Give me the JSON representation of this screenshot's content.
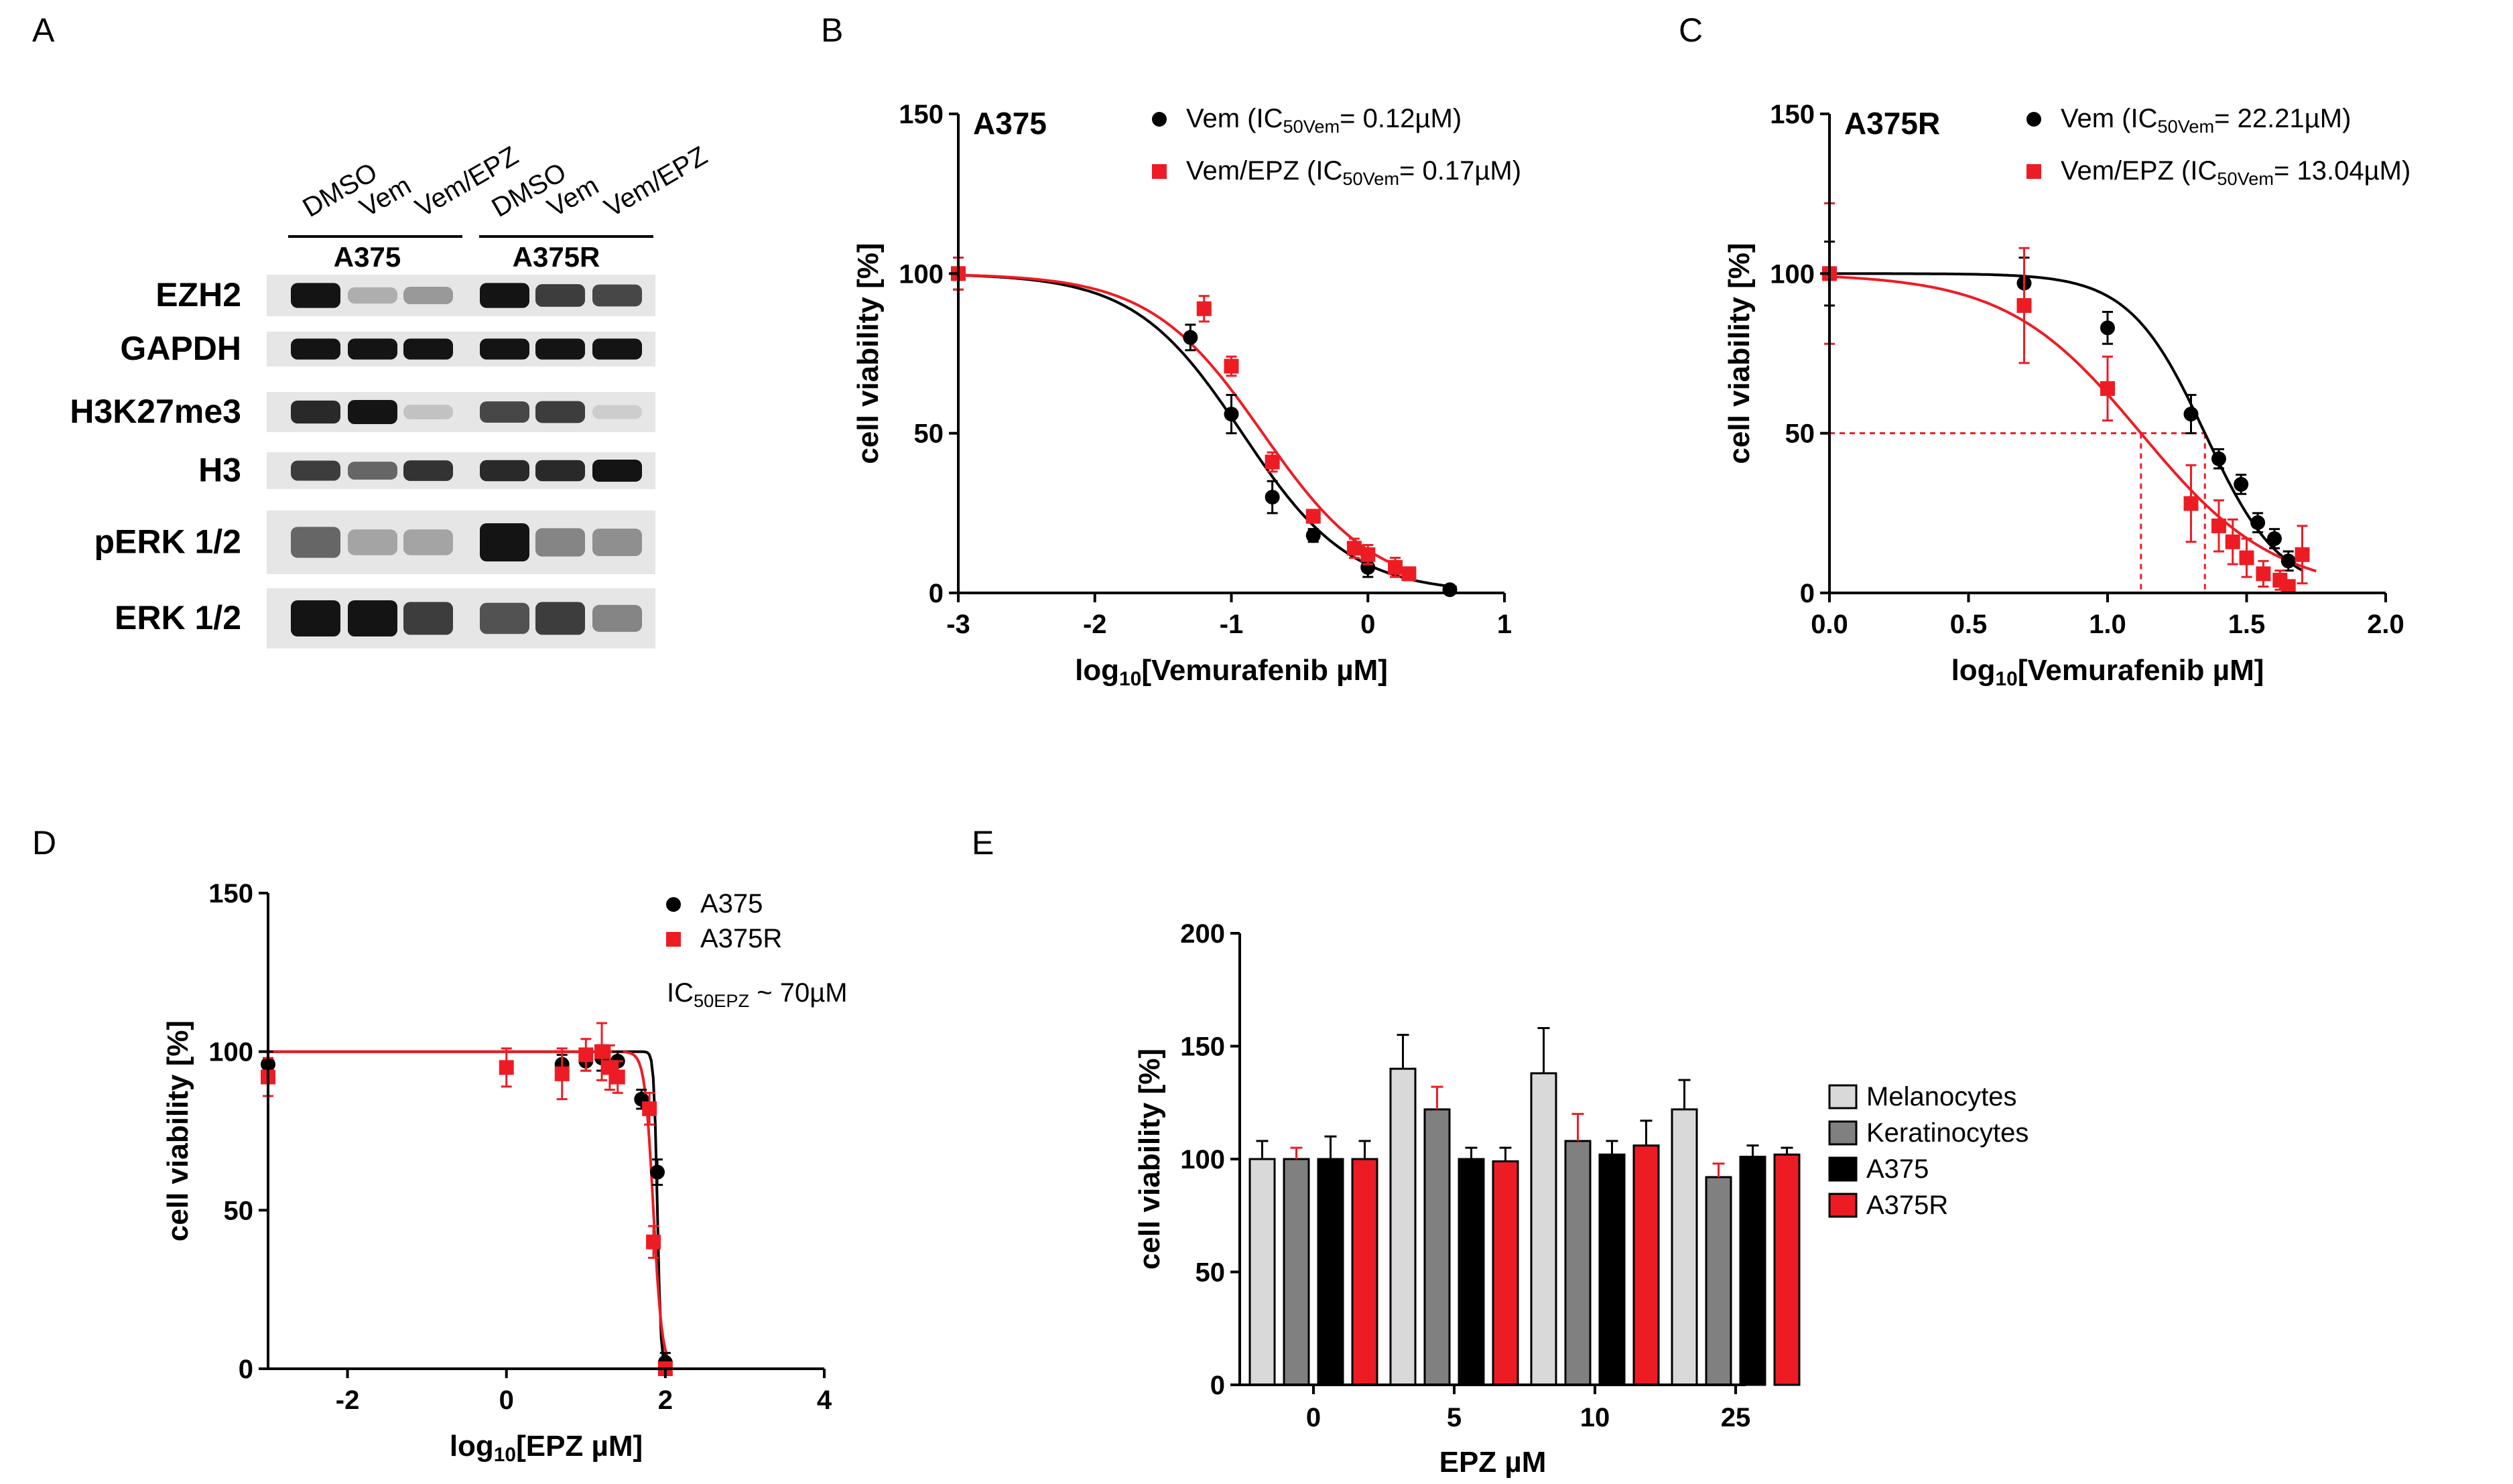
{
  "panel_letters": [
    "A",
    "B",
    "C",
    "D",
    "E"
  ],
  "blot": {
    "lanes": [
      "DMSO",
      "Vem",
      "Vem/EPZ",
      "DMSO",
      "Vem",
      "Vem/EPZ"
    ],
    "cell_lines": [
      "A375",
      "A375R"
    ],
    "rows": [
      "EZH2",
      "GAPDH",
      "H3K27me3",
      "H3",
      "pERK 1/2",
      "ERK 1/2"
    ],
    "band_intensity": [
      [
        1.0,
        0.25,
        0.35,
        1.0,
        0.8,
        0.75
      ],
      [
        1.0,
        1.0,
        1.0,
        1.0,
        1.0,
        1.0
      ],
      [
        0.9,
        1.0,
        0.15,
        0.75,
        0.8,
        0.1
      ],
      [
        0.8,
        0.6,
        0.85,
        0.9,
        0.9,
        1.0
      ],
      [
        0.6,
        0.3,
        0.3,
        1.0,
        0.45,
        0.4
      ],
      [
        1.0,
        1.0,
        0.8,
        0.7,
        0.8,
        0.45
      ]
    ]
  },
  "chart_data": [
    {
      "id": "B",
      "type": "scatter",
      "title": "A375",
      "xlabel_prefix": "log",
      "xlabel_sub": "10",
      "xlabel_suffix": "[Vemurafenib µM]",
      "ylabel": "cell viability [%]",
      "xlim": [
        -3,
        1
      ],
      "ylim": [
        0,
        150
      ],
      "xticks": [
        -3,
        -2,
        -1,
        0,
        1
      ],
      "yticks": [
        0,
        50,
        100,
        150
      ],
      "xtick_labels": [
        "-3",
        "-2",
        "-1",
        "0",
        "1"
      ],
      "ytick_labels": [
        "0",
        "50",
        "100",
        "150"
      ],
      "series": [
        {
          "name": "Vem",
          "legend_pre": "Vem (IC",
          "legend_sub": "50Vem",
          "legend_post": "= 0.12µM)",
          "color": "#000000",
          "marker": "circle",
          "x": [
            -3,
            -1.3,
            -1.0,
            -0.7,
            -0.4,
            0.0,
            0.6
          ],
          "y": [
            100,
            80,
            56,
            30,
            18,
            8,
            1
          ],
          "err": [
            5,
            4,
            6,
            5,
            2,
            3,
            1
          ],
          "fit": {
            "top": 100,
            "bottom": 0,
            "logic50": -0.92,
            "hill": 1.1
          }
        },
        {
          "name": "Vem/EPZ",
          "legend_pre": "Vem/EPZ (IC",
          "legend_sub": "50Vem",
          "legend_post": "= 0.17µM)",
          "color": "#ed1c24",
          "marker": "square",
          "x": [
            -3,
            -1.2,
            -1.0,
            -0.7,
            -0.4,
            -0.1,
            0.0,
            0.2,
            0.3
          ],
          "y": [
            100,
            89,
            71,
            41,
            24,
            14,
            12,
            8,
            6
          ],
          "err": [
            5,
            4,
            3,
            3,
            2,
            3,
            3,
            3,
            2
          ],
          "fit": {
            "top": 100,
            "bottom": 0,
            "logic50": -0.77,
            "hill": 1.05
          }
        }
      ]
    },
    {
      "id": "C",
      "type": "scatter",
      "title": "A375R",
      "xlabel_prefix": "log",
      "xlabel_sub": "10",
      "xlabel_suffix": "[Vemurafenib µM]",
      "ylabel": "cell viability [%]",
      "xlim": [
        0,
        2
      ],
      "ylim": [
        0,
        150
      ],
      "xticks": [
        0,
        0.5,
        1.0,
        1.5,
        2.0
      ],
      "yticks": [
        0,
        50,
        100,
        150
      ],
      "xtick_labels": [
        "0.0",
        "0.5",
        "1.0",
        "1.5",
        "2.0"
      ],
      "ytick_labels": [
        "0",
        "50",
        "100",
        "150"
      ],
      "ic50_guides": [
        1.12,
        1.35
      ],
      "series": [
        {
          "name": "Vem",
          "legend_pre": "Vem (IC",
          "legend_sub": "50Vem",
          "legend_post": "= 22.21µM)",
          "color": "#000000",
          "marker": "circle",
          "x": [
            0,
            0.7,
            1.0,
            1.3,
            1.4,
            1.48,
            1.54,
            1.6,
            1.65
          ],
          "y": [
            100,
            97,
            83,
            56,
            42,
            34,
            22,
            17,
            10
          ],
          "err": [
            10,
            8,
            5,
            6,
            3,
            3,
            3,
            3,
            3
          ],
          "fit": {
            "top": 100,
            "bottom": 0,
            "logic50": 1.35,
            "hill": 3.2
          }
        },
        {
          "name": "Vem/EPZ",
          "legend_pre": "Vem/EPZ (IC",
          "legend_sub": "50Vem",
          "legend_post": "= 13.04µM)",
          "color": "#ed1c24",
          "marker": "square",
          "x": [
            0,
            0.7,
            1.0,
            1.3,
            1.4,
            1.45,
            1.5,
            1.56,
            1.62,
            1.65,
            1.7
          ],
          "y": [
            100,
            90,
            64,
            28,
            21,
            16,
            11,
            6,
            4,
            2,
            12
          ],
          "err": [
            22,
            18,
            10,
            12,
            8,
            7,
            6,
            4,
            3,
            2,
            9
          ],
          "fit": {
            "top": 100,
            "bottom": 0,
            "logic50": 1.12,
            "hill": 1.8
          }
        }
      ]
    },
    {
      "id": "D",
      "type": "scatter",
      "title": "",
      "xlabel_prefix": "log",
      "xlabel_sub": "10",
      "xlabel_suffix": "[EPZ µM]",
      "ylabel": "cell viability [%]",
      "xlim": [
        -3,
        4
      ],
      "ylim": [
        0,
        150
      ],
      "xticks": [
        -2,
        0,
        2,
        4
      ],
      "yticks": [
        0,
        50,
        100,
        150
      ],
      "xtick_labels": [
        "-2",
        "0",
        "2",
        "4"
      ],
      "ytick_labels": [
        "0",
        "50",
        "100",
        "150"
      ],
      "annotation_pre": "IC",
      "annotation_sub": "50EPZ",
      "annotation_post": "~ 70µM",
      "series": [
        {
          "name": "A375",
          "legend_pre": "A375",
          "legend_sub": "",
          "legend_post": "",
          "color": "#000000",
          "marker": "circle",
          "x": [
            -3,
            0.7,
            1.0,
            1.2,
            1.4,
            1.7,
            1.9,
            2.0
          ],
          "y": [
            96,
            96,
            97,
            98,
            97,
            85,
            62,
            2
          ],
          "err": [
            4,
            3,
            3,
            4,
            3,
            3,
            4,
            3
          ],
          "fit": {
            "top": 100,
            "bottom": 0,
            "logic50": 1.9,
            "hill": 20
          }
        },
        {
          "name": "A375R",
          "legend_pre": "A375R",
          "legend_sub": "",
          "legend_post": "",
          "color": "#ed1c24",
          "marker": "square",
          "x": [
            -3,
            0,
            0.7,
            1.0,
            1.2,
            1.3,
            1.4,
            1.8,
            1.85,
            2.0
          ],
          "y": [
            92,
            95,
            93,
            99,
            100,
            95,
            92,
            82,
            40,
            0
          ],
          "err": [
            6,
            6,
            8,
            5,
            9,
            7,
            5,
            5,
            5,
            2
          ],
          "fit": {
            "top": 100,
            "bottom": 0,
            "logic50": 1.85,
            "hill": 8
          }
        }
      ]
    },
    {
      "id": "E",
      "type": "bar",
      "title": "",
      "xlabel": "EPZ µM",
      "ylabel": "cell viability [%]",
      "ylim": [
        0,
        200
      ],
      "yticks": [
        0,
        50,
        100,
        150,
        200
      ],
      "ytick_labels": [
        "0",
        "50",
        "100",
        "150",
        "200"
      ],
      "categories": [
        "0",
        "5",
        "10",
        "25"
      ],
      "series": [
        {
          "name": "Melanocytes",
          "color": "#d9d9d9",
          "values": [
            100,
            140,
            138,
            122
          ],
          "err": [
            8,
            15,
            20,
            13
          ]
        },
        {
          "name": "Keratinocytes",
          "color": "#808080",
          "values": [
            100,
            122,
            108,
            92
          ],
          "err": [
            5,
            10,
            12,
            6
          ]
        },
        {
          "name": "A375",
          "color": "#000000",
          "values": [
            100,
            100,
            102,
            101
          ],
          "err": [
            10,
            5,
            6,
            5
          ]
        },
        {
          "name": "A375R",
          "color": "#ed1c24",
          "values": [
            100,
            99,
            106,
            102
          ],
          "err": [
            8,
            6,
            11,
            3
          ]
        }
      ]
    }
  ]
}
